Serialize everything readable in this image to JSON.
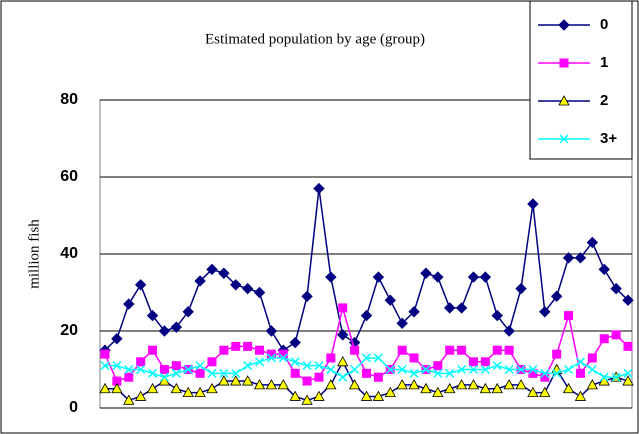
{
  "chart_data": {
    "type": "line",
    "title": "Estimated population by age (group)",
    "y_label": "million fish",
    "categories": [
      null,
      null,
      null,
      null,
      null,
      null,
      null,
      null,
      null,
      null,
      null,
      null,
      null,
      null,
      null,
      null,
      null,
      null,
      null,
      null,
      null,
      null,
      null,
      null,
      null,
      null,
      null,
      null,
      null,
      null,
      null,
      null,
      null,
      null,
      null,
      null,
      null,
      null,
      null,
      null,
      null,
      null,
      null,
      null,
      null
    ],
    "series": [
      {
        "name": "0",
        "color": "#000080",
        "marker": "diamond",
        "marker_color": "#000080",
        "values": [
          15,
          18,
          27,
          32,
          24,
          20,
          21,
          25,
          33,
          36,
          35,
          32,
          31,
          30,
          20,
          15,
          17,
          29,
          57,
          34,
          19,
          17,
          24,
          34,
          28,
          22,
          25,
          35,
          34,
          26,
          26,
          34,
          34,
          24,
          20,
          31,
          53,
          25,
          29,
          39,
          39,
          43,
          36,
          31,
          28
        ]
      },
      {
        "name": "1",
        "color": "#ff00ff",
        "marker": "square",
        "marker_color": "#ff00ff",
        "values": [
          14,
          7,
          8,
          12,
          15,
          10,
          11,
          10,
          9,
          12,
          15,
          16,
          16,
          15,
          14,
          14,
          9,
          7,
          8,
          13,
          26,
          15,
          9,
          8,
          10,
          15,
          13,
          10,
          11,
          15,
          15,
          12,
          12,
          15,
          15,
          10,
          9,
          8,
          14,
          24,
          9,
          13,
          18,
          19,
          16
        ]
      },
      {
        "name": "2",
        "color": "#000080",
        "marker": "triangle",
        "marker_color": "#ffff00",
        "values": [
          5,
          5,
          2,
          3,
          5,
          7,
          5,
          4,
          4,
          5,
          7,
          7,
          7,
          6,
          6,
          6,
          3,
          2,
          3,
          6,
          12,
          6,
          3,
          3,
          4,
          6,
          6,
          5,
          4,
          5,
          6,
          6,
          5,
          5,
          6,
          6,
          4,
          4,
          10,
          5,
          3,
          6,
          7,
          8,
          7
        ]
      },
      {
        "name": "3+",
        "color": "#00ffff",
        "marker": "x",
        "marker_color": "#00ffff",
        "values": [
          11,
          11,
          10,
          10,
          9,
          8,
          9,
          10,
          11,
          9,
          9,
          9,
          11,
          12,
          13,
          13,
          12,
          11,
          11,
          10,
          8,
          10,
          13,
          13,
          10,
          10,
          9,
          10,
          9,
          9,
          10,
          10,
          10,
          11,
          10,
          10,
          10,
          9,
          9,
          10,
          12,
          10,
          8,
          8,
          9
        ]
      }
    ],
    "ylim": [
      0,
      80
    ],
    "yticks": [
      0,
      20,
      40,
      60,
      80
    ],
    "grid": true,
    "legend": "top-right"
  }
}
